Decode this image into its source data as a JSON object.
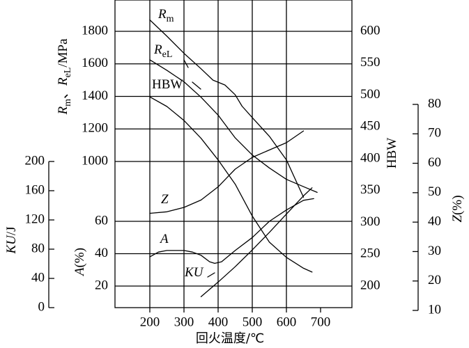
{
  "chart_data": {
    "type": "line",
    "xlabel": "回火温度/℃",
    "x_ticks": [
      200,
      300,
      400,
      500,
      600,
      700
    ],
    "xlim": [
      100,
      800
    ],
    "axes": {
      "strength": {
        "label_parts": [
          {
            "t": "R",
            "italic": true
          },
          {
            "t": "m",
            "sub": true
          },
          {
            "t": "、",
            "italic": false
          },
          {
            "t": "R",
            "italic": true
          },
          {
            "t": "eL",
            "sub": true
          },
          {
            "t": "/MPa",
            "italic": false
          }
        ],
        "ticks": [
          1000,
          1200,
          1400,
          1600,
          1800
        ],
        "ylim": [
          1000,
          1900
        ]
      },
      "hbw": {
        "label": "HBW",
        "ticks": [
          200,
          250,
          300,
          350,
          400,
          450,
          500,
          550,
          600
        ],
        "ylim": [
          200,
          625
        ]
      },
      "z": {
        "label": "Z(%)",
        "ticks": [
          10,
          20,
          30,
          40,
          50,
          60,
          70,
          80
        ],
        "ylim": [
          10,
          80
        ]
      },
      "a": {
        "label": "A(%)",
        "ticks": [
          20,
          40,
          60
        ],
        "ylim": [
          0,
          60
        ]
      },
      "ku": {
        "label": "KU/J",
        "ticks": [
          0,
          40,
          80,
          120,
          160,
          200
        ],
        "ylim": [
          0,
          200
        ]
      }
    },
    "series": [
      {
        "name": "Rm",
        "axis": "strength",
        "x": [
          200,
          250,
          300,
          350,
          385,
          420,
          450,
          470,
          500,
          550,
          600,
          650
        ],
        "y": [
          1870,
          1770,
          1665,
          1570,
          1500,
          1470,
          1410,
          1340,
          1270,
          1155,
          1010,
          780
        ]
      },
      {
        "name": "ReL",
        "axis": "strength",
        "x": [
          200,
          250,
          300,
          350,
          400,
          450,
          500,
          550,
          600,
          650,
          690
        ],
        "y": [
          1625,
          1560,
          1490,
          1395,
          1285,
          1145,
          1040,
          960,
          890,
          845,
          810
        ]
      },
      {
        "name": "HBW",
        "axis": "hbw",
        "x": [
          200,
          250,
          300,
          350,
          400,
          450,
          500,
          550,
          600,
          650,
          675
        ],
        "y": [
          497,
          482,
          460,
          432,
          398,
          360,
          310,
          269,
          245,
          228,
          222
        ]
      },
      {
        "name": "Z",
        "axis": "z",
        "x": [
          200,
          250,
          300,
          350,
          400,
          450,
          500,
          550,
          600,
          650
        ],
        "y": [
          43,
          43.5,
          45,
          47.5,
          52,
          58,
          62,
          64.5,
          67,
          71
        ]
      },
      {
        "name": "A",
        "axis": "a",
        "x": [
          200,
          225,
          250,
          275,
          300,
          325,
          350,
          375,
          390,
          410,
          450,
          500,
          550,
          600,
          650,
          680
        ],
        "y": [
          38,
          41,
          42,
          42,
          42,
          41,
          39,
          35,
          34,
          35,
          42,
          50,
          60,
          67,
          73,
          74
        ]
      },
      {
        "name": "KU",
        "axis": "ku",
        "x": [
          350,
          400,
          450,
          500,
          550,
          600,
          650,
          675
        ],
        "y": [
          15,
          35,
          56,
          79,
          103,
          128,
          153,
          164
        ]
      }
    ],
    "curve_labels": [
      {
        "series": "Rm",
        "parts": [
          {
            "t": "R",
            "italic": true
          },
          {
            "t": "m",
            "sub": true
          }
        ]
      },
      {
        "series": "ReL",
        "parts": [
          {
            "t": "R",
            "italic": true
          },
          {
            "t": "eL",
            "sub": true
          }
        ]
      },
      {
        "series": "HBW",
        "parts": [
          {
            "t": "HBW",
            "italic": false
          }
        ]
      },
      {
        "series": "Z",
        "parts": [
          {
            "t": "Z",
            "italic": true
          }
        ]
      },
      {
        "series": "A",
        "parts": [
          {
            "t": "A",
            "italic": true
          }
        ]
      },
      {
        "series": "KU",
        "parts": [
          {
            "t": "KU",
            "italic": true
          }
        ]
      }
    ]
  }
}
